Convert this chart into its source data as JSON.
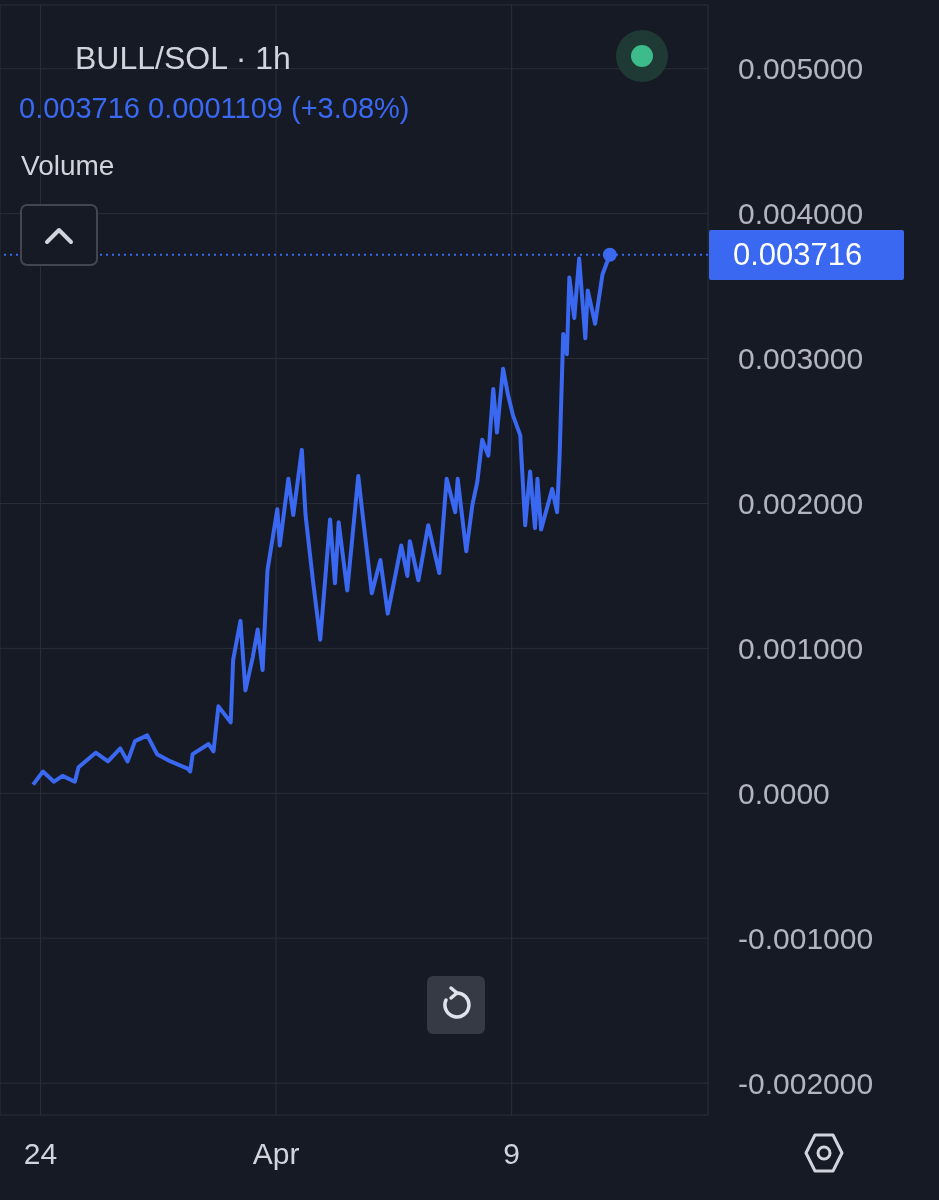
{
  "chart_data": {
    "type": "line",
    "title": "BULL/SOL · 1h",
    "subtitle": "0.003716 0.0001109 (+3.08%)",
    "annotations": [
      "Volume"
    ],
    "x": [
      "--03-23T18:00",
      "--03-24T02:00",
      "--03-24T11:00",
      "--03-24T18:00",
      "--03-25T04:00",
      "--03-25T07:00",
      "--03-25T21:00",
      "--03-26T07:00",
      "--03-26T17:00",
      "--03-26T23:00",
      "--03-27T05:00",
      "--03-27T15:00",
      "--03-27T23:00",
      "--03-28T10:00",
      "--03-29T00:00",
      "--03-29T02:00",
      "--03-29T04:00",
      "--03-29T17:00",
      "--03-29T21:00",
      "--03-30T01:00",
      "--03-30T11:00",
      "--03-30T13:00",
      "--03-30T19:00",
      "--03-30T23:00",
      "--03-31T05:00",
      "--03-31T09:00",
      "--03-31T13:00",
      "--03-31T17:00",
      "--04-01T01:00",
      "--04-01T03:00",
      "--04-01T10:00",
      "--04-01T14:00",
      "--04-01T21:00",
      "--04-02T00:00",
      "--04-02T06:00",
      "--04-02T12:00",
      "--04-02T20:00",
      "--04-03T00:00",
      "--04-03T03:00",
      "--04-03T10:00",
      "--04-03T19:00",
      "--04-03T22:00",
      "--04-04T06:00",
      "--04-04T13:00",
      "--04-04T19:00",
      "--04-05T06:00",
      "--04-05T11:00",
      "--04-05T13:00",
      "--04-05T20:00",
      "--04-06T04:00",
      "--04-06T13:00",
      "--04-06T19:00",
      "--04-07T02:00",
      "--04-07T04:00",
      "--04-07T11:00",
      "--04-07T16:00",
      "--04-07T20:00",
      "--04-08T00:00",
      "--04-08T05:00",
      "--04-08T09:00",
      "--04-08T12:00",
      "--04-08T17:00",
      "--04-08T21:00",
      "--04-09T01:00",
      "--04-09T07:00",
      "--04-09T11:00",
      "--04-09T15:00",
      "--04-09T19:00",
      "--04-09T21:00",
      "--04-10T00:00",
      "--04-10T09:00",
      "--04-10T13:00",
      "--04-10T15:00",
      "--04-10T18:00",
      "--04-10T21:00",
      "--04-10T23:00",
      "--04-11T03:00",
      "--04-11T07:00",
      "--04-11T12:00",
      "--04-11T14:00",
      "--04-11T20:00",
      "--04-12T02:00",
      "--04-12T08:00"
    ],
    "series": [
      {
        "color": "#3a68f0",
        "values": [
          6e-05,
          0.00015,
          8e-05,
          0.00012,
          8e-05,
          0.00018,
          0.00028,
          0.00022,
          0.00031,
          0.00022,
          0.00036,
          0.0004,
          0.00027,
          0.00022,
          0.00017,
          0.00015,
          0.00027,
          0.00034,
          0.00029,
          0.0006,
          0.00049,
          0.00092,
          0.00119,
          0.00071,
          0.00094,
          0.00113,
          0.00085,
          0.00154,
          0.00196,
          0.00171,
          0.00217,
          0.00192,
          0.00237,
          0.00192,
          0.00147,
          0.00106,
          0.00189,
          0.00145,
          0.00187,
          0.0014,
          0.00219,
          0.00196,
          0.00138,
          0.00161,
          0.00124,
          0.00171,
          0.0015,
          0.00174,
          0.00147,
          0.00185,
          0.00152,
          0.00217,
          0.00194,
          0.00217,
          0.00167,
          0.00199,
          0.00215,
          0.00244,
          0.00233,
          0.00279,
          0.00249,
          0.00293,
          0.00275,
          0.00261,
          0.00247,
          0.00185,
          0.00222,
          0.00183,
          0.00217,
          0.00182,
          0.0021,
          0.00194,
          0.00231,
          0.00317,
          0.00303,
          0.00356,
          0.00328,
          0.00369,
          0.00314,
          0.00347,
          0.00324,
          0.00358,
          0.003716
        ]
      }
    ],
    "xlim": [
      "--03-22T15:00",
      "--04-15T16:00"
    ],
    "xticks": [
      {
        "value": "--03-24",
        "label": "24"
      },
      {
        "value": "--04-01",
        "label": "Apr"
      },
      {
        "value": "--04-09",
        "label": "9"
      }
    ],
    "ylim": [
      -0.00222,
      0.00544
    ],
    "yticks": [
      {
        "value": -0.002,
        "label": "-0.002000"
      },
      {
        "value": -0.001,
        "label": "-0.001000"
      },
      {
        "value": 0,
        "label": "0.0000"
      },
      {
        "value": 0.001,
        "label": "0.001000"
      },
      {
        "value": 0.002,
        "label": "0.002000"
      },
      {
        "value": 0.003,
        "label": "0.003000"
      },
      {
        "value": 0.004,
        "label": "0.004000"
      },
      {
        "value": 0.005,
        "label": "0.005000"
      }
    ],
    "ref_lines": [
      {
        "axis": "y",
        "value": 0.003716,
        "label": "0.003716",
        "color": "#3a68f0",
        "line_style": "dotted"
      }
    ],
    "grid": true,
    "marker": "none",
    "line_style": "solid"
  }
}
